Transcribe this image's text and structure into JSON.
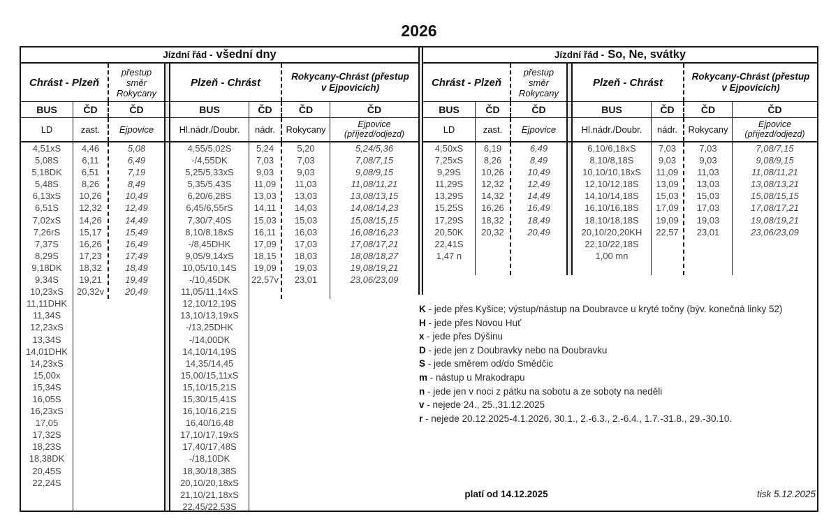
{
  "title": "2026",
  "table": {
    "halves": [
      {
        "period_prefix": "Jízdní řád -",
        "period": "všední dny",
        "groups": [
          "Chrást - Plzeň",
          "přestup\nsměr\nRokycany",
          "Plzeň - Chrást",
          "Rokycany-Chrást (přestup v Ejpovicích)"
        ],
        "carrier_row": [
          "BUS",
          "ČD",
          "ČD",
          "BUS",
          "ČD",
          "ČD",
          "ČD"
        ],
        "stop_row": [
          "LD",
          "zast.",
          "Ejpovice",
          "Hl.nádr./Doubr.",
          "nádr.",
          "Rokycany",
          "Ejpovice (příjezd/odjezd)"
        ],
        "chrast_plzen": {
          "bus": [
            "4,51xS",
            "5,08S",
            "5,18DK",
            "5,48S",
            "6,13xS",
            "6,51S",
            "7,02xS",
            "7,26rS",
            "7,37S",
            "8,29S",
            "9,18DK",
            "9,34S",
            "10,23xS",
            "11,11DHK",
            "11,34S",
            "12,23xS",
            "13,34S",
            "14,01DHK",
            "14,23xS",
            "15,00x",
            "15,34S",
            "16,05S",
            "16,23xS",
            "17,05",
            "17,32S",
            "18,23S",
            "18,38DK",
            "20,45S",
            "22,24S"
          ],
          "zast": [
            "4,46",
            "6,11",
            "6,51",
            "8,26",
            "10,26",
            "12,32",
            "14,26",
            "15,17",
            "16,26",
            "17,23",
            "18,32",
            "19,21",
            "20,32v"
          ],
          "ejpovice": [
            "5,08",
            "6,49",
            "7,19",
            "8,49",
            "10,49",
            "12,49",
            "14,49",
            "15,49",
            "16,49",
            "17,49",
            "18,49",
            "19,49",
            "20,49"
          ]
        },
        "plzen_chrast": {
          "bus": [
            "4,55/5,02S",
            "-/4,55DK",
            "5,25/5,33xS",
            "5,35/5,43S",
            "6,20/6,28S",
            "6,45/6,55rS",
            "7,30/7,40S",
            "8,10/8,18xS",
            "-/8,45DHK",
            "9,05/9,14xS",
            "10,05/10,14S",
            "-/10,45DK",
            "11,05/11,14xS",
            "12,10/12,19S",
            "13,10/13,19xS",
            "-/13,25DHK",
            "-/14,00DK",
            "14,10/14,19S",
            "14,35/14,45",
            "15,00/15,11xS",
            "15,10/15,21S",
            "15,30/15,41S",
            "16,10/16,21S",
            "16,40/16,48",
            "17,10/17,19xS",
            "17,40/17,48S",
            "-/18,10DK",
            "18,30/18,38S",
            "20,10/20,18xS",
            "21,10/21,18xS",
            "22,45/22,53S"
          ],
          "nadr": [
            "5,24",
            "7,03",
            "9,03",
            "11,09",
            "13,03",
            "14,11",
            "15,03",
            "16,11",
            "17,09",
            "18,15",
            "19,09",
            "22,57v"
          ],
          "rokycany": [
            "5,20",
            "7,03",
            "9,03",
            "11,03",
            "13,03",
            "14,03",
            "15,03",
            "16,03",
            "17,03",
            "18,03",
            "19,03",
            "23,01"
          ],
          "ejpovice": [
            "5,24/5,36",
            "7,08/7,15",
            "9,08/9,15",
            "11,08/11,21",
            "13,08/13,15",
            "14,08/14,23",
            "15,08/15,15",
            "16,08/16,23",
            "17,08/17,21",
            "18,08/18,27",
            "19,08/19,21",
            "23,06/23,09"
          ]
        }
      },
      {
        "period_prefix": "Jízdní řád -",
        "period": "So, Ne, svátky",
        "groups": [
          "Chrást - Plzeň",
          "přestup\nsměr\nRokycany",
          "Plzeň - Chrást",
          "Rokycany-Chrást (přestup v Ejpovicích)"
        ],
        "carrier_row": [
          "BUS",
          "ČD",
          "ČD",
          "BUS",
          "ČD",
          "ČD",
          "ČD"
        ],
        "stop_row": [
          "LD",
          "zast.",
          "Ejpovice",
          "Hl.nádr./Doubr.",
          "nádr.",
          "Rokycany",
          "Ejpovice (příjezd/odjezd)"
        ],
        "chrast_plzen": {
          "bus": [
            "4,50xS",
            "7,25xS",
            "9,29S",
            "11,29S",
            "13,29S",
            "15,25S",
            "17,29S",
            "20,50K",
            "22,41S",
            "1,47 n"
          ],
          "zast": [
            "6,19",
            "8,26",
            "10,26",
            "12,32",
            "14,32",
            "16,26",
            "18,32",
            "20,32"
          ],
          "ejpovice": [
            "6,49",
            "8,49",
            "10,49",
            "12,49",
            "14,49",
            "16,49",
            "18,49",
            "20,49"
          ]
        },
        "plzen_chrast": {
          "bus": [
            "6,10/6,18xS",
            "8,10/8,18S",
            "10,10/10,18xS",
            "12,10/12,18S",
            "14,10/14,18S",
            "16,10/16,18S",
            "18,10/18,18S",
            "20,10/20,20KH",
            "22,10/22,18S",
            "1,00 mn"
          ],
          "nadr": [
            "7,03",
            "9,03",
            "11,09",
            "13,09",
            "15,03",
            "17,09",
            "19,09",
            "22,57"
          ],
          "rokycany": [
            "7,03",
            "9,03",
            "11,03",
            "13,03",
            "15,03",
            "17,03",
            "19,03",
            "23,01"
          ],
          "ejpovice": [
            "7,08/7,15",
            "9,08/9,15",
            "11,08/11,21",
            "13,08/13,21",
            "15,08/15,15",
            "17,08/17,21",
            "19,08/19,21",
            "23,06/23,09"
          ]
        }
      }
    ]
  },
  "legend": [
    {
      "key": "K",
      "text": "jede přes Kyšice; výstup/nástup na Doubravce u kryté točny (býv. konečná linky 52)"
    },
    {
      "key": "H",
      "text": "jede přes Novou Huť"
    },
    {
      "key": "x",
      "text": "jede přes Dýšinu"
    },
    {
      "key": "D",
      "text": "jede jen z Doubravky nebo na Doubravku"
    },
    {
      "key": "S",
      "text": "jede směrem od/do Smědčic"
    },
    {
      "key": "m",
      "text": "nástup u Mrakodrapu"
    },
    {
      "key": "n",
      "text": "jede jen v noci z pátku na sobotu a ze soboty na neděli"
    },
    {
      "key": "v",
      "text": "nejede 24., 25.,31.12.2025"
    },
    {
      "key": "r",
      "text": "nejede 20.12.2025-4.1.2026, 30.1., 2.-6.3., 2.-6.4., 1.7.-31.8., 29.-30.10."
    }
  ],
  "footer": {
    "valid_from": "platí od 14.12.2025",
    "printed": "tisk 5.12.2025"
  }
}
